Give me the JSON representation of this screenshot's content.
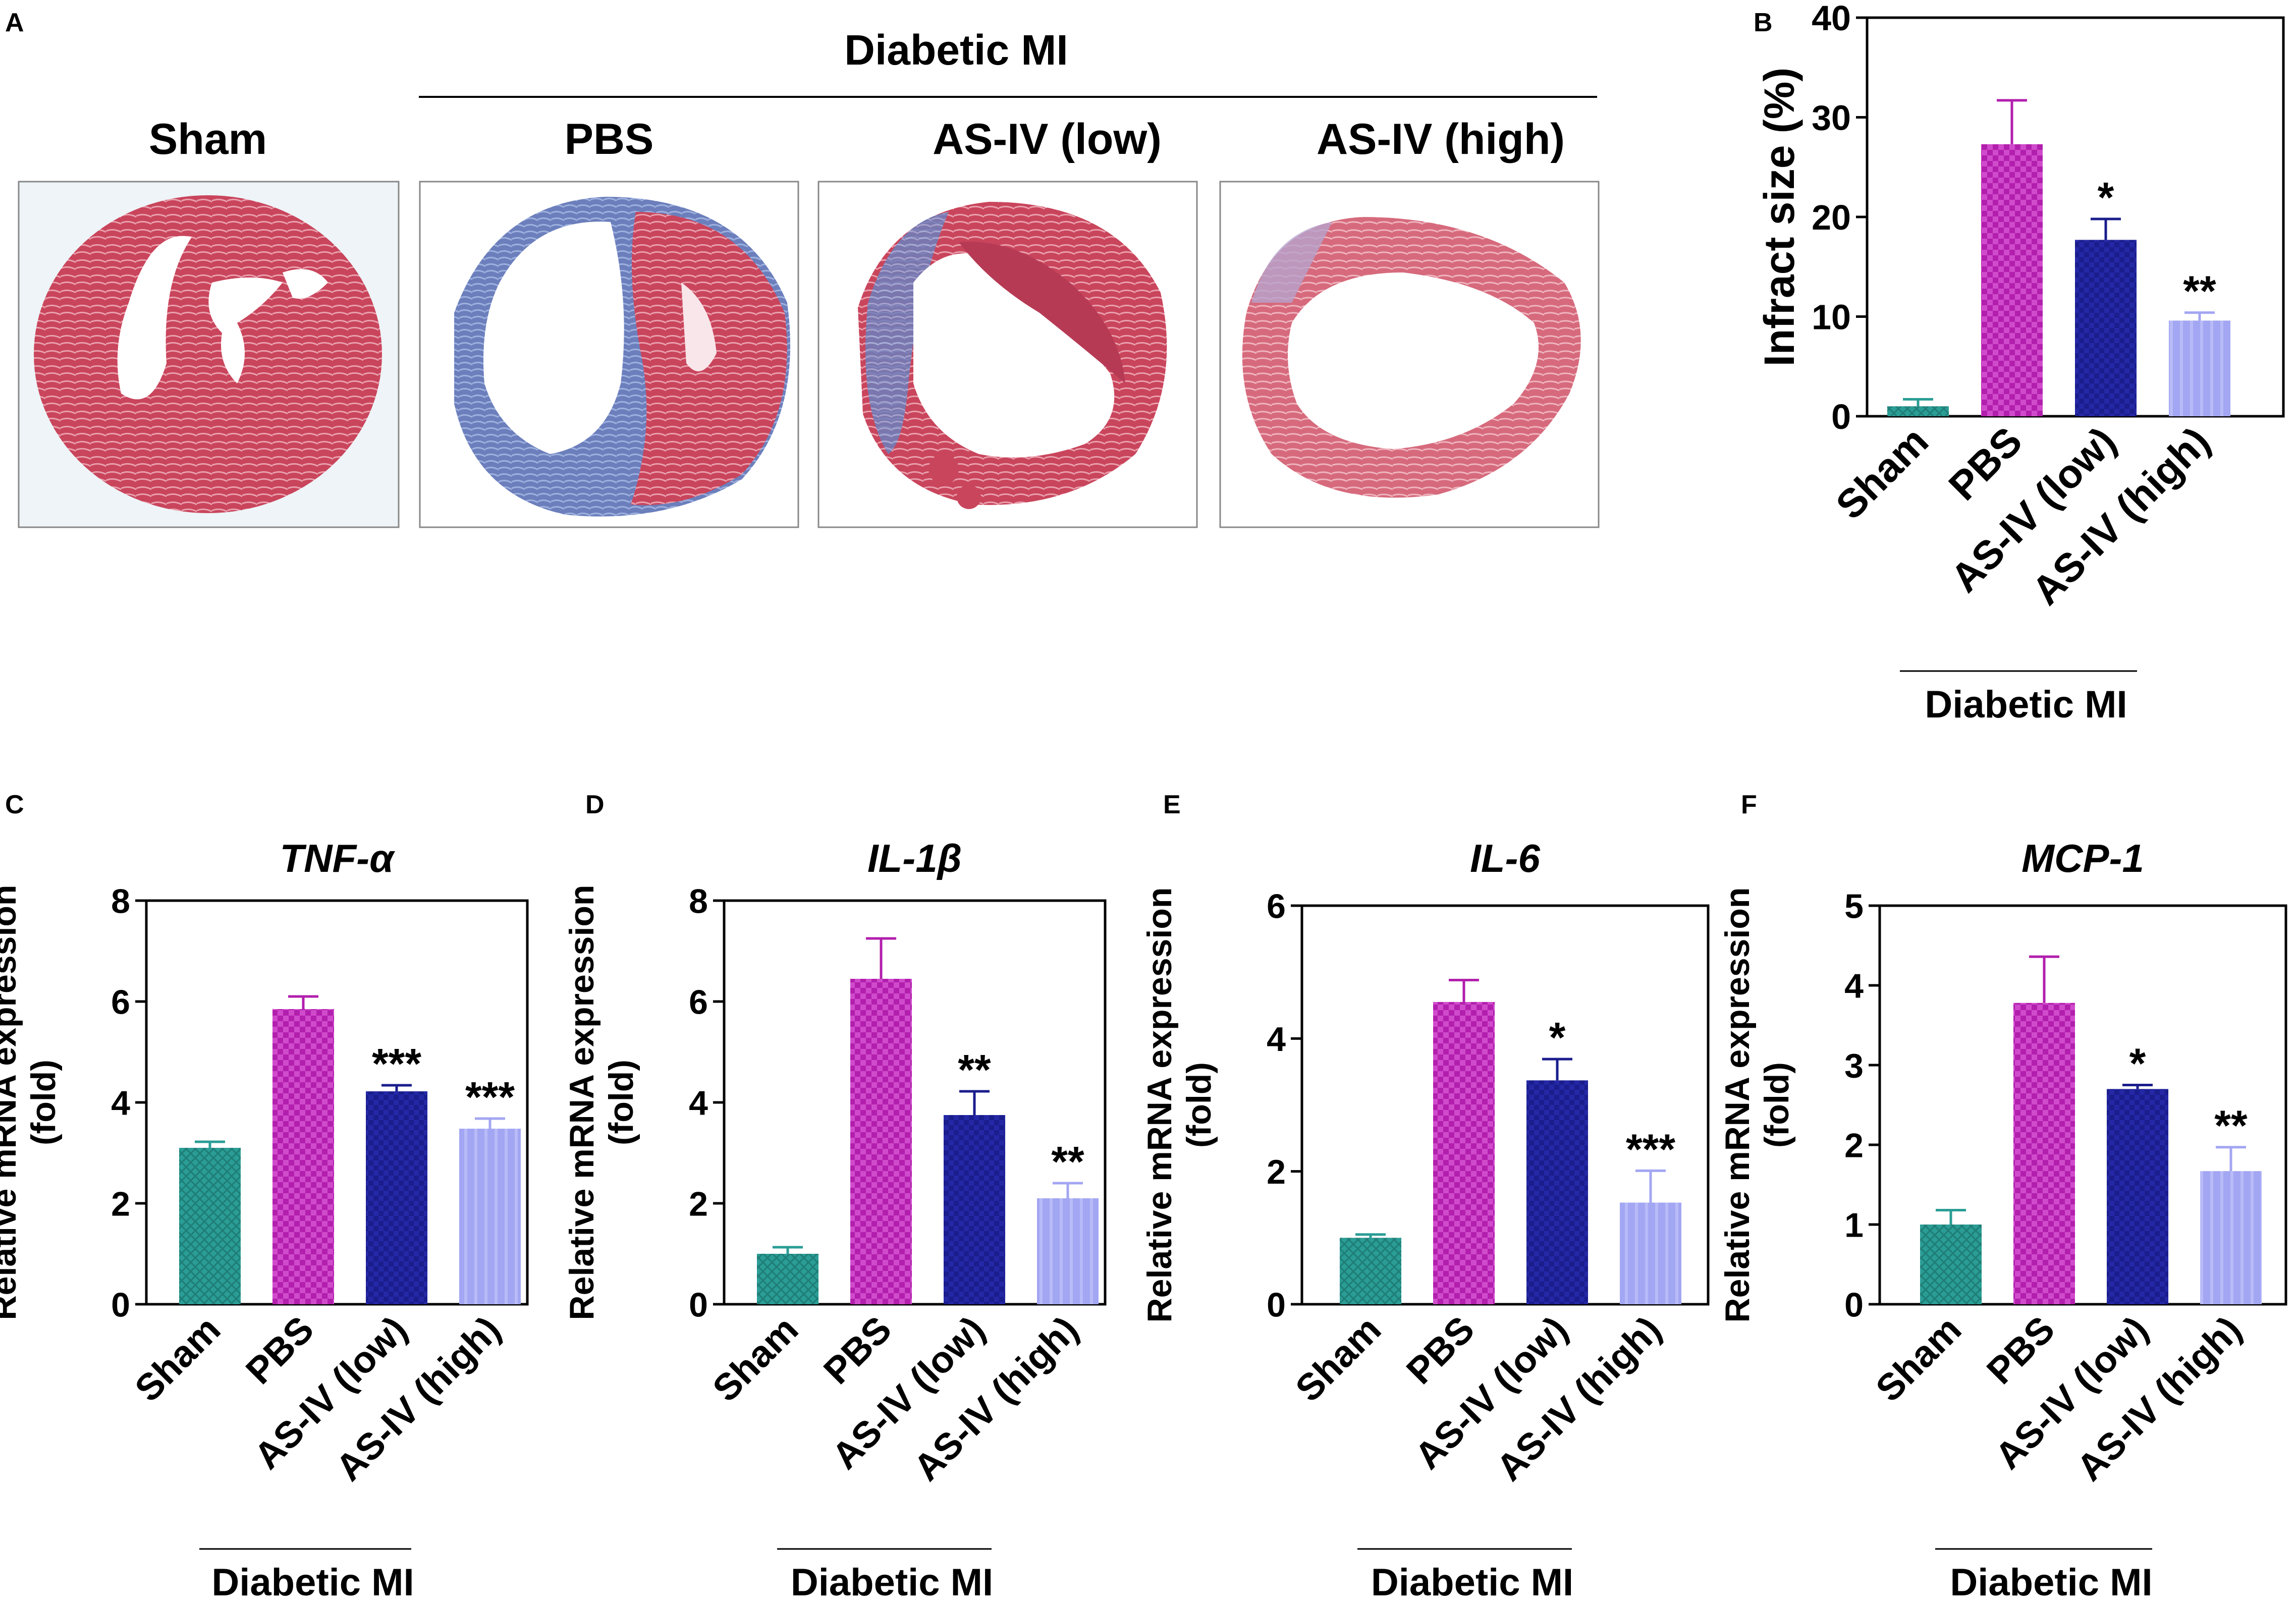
{
  "panel_a": {
    "letter": "A",
    "group_label": "Diabetic MI",
    "sections": [
      {
        "label": "Sham",
        "stain": "sham"
      },
      {
        "label": "PBS",
        "stain": "pbs"
      },
      {
        "label": "AS-IV (low)",
        "stain": "low"
      },
      {
        "label": "AS-IV (high)",
        "stain": "high"
      }
    ]
  },
  "colors": {
    "sham": "#2a9d95",
    "pbs": "#b21fad",
    "low": "#1a1d8c",
    "high": "#a3a6f2",
    "tissue_red": "#c9455c",
    "fibrosis_blue": "#6c7fbc"
  },
  "chart_data": [
    {
      "letter": "B",
      "type": "bar",
      "title": "",
      "title_italic": false,
      "ylabel": "Infract size (%)",
      "ylabel_lines": [
        "Infract size (%)"
      ],
      "categories": [
        "Sham",
        "PBS",
        "AS-IV (low)",
        "AS-IV (high)"
      ],
      "values": [
        1.0,
        27.3,
        17.7,
        9.6
      ],
      "errors": [
        0.7,
        4.4,
        2.1,
        0.8
      ],
      "significance": [
        "",
        "",
        "*",
        "**"
      ],
      "ylim": [
        0,
        40
      ],
      "yticks": [
        "0",
        "10",
        "20",
        "30",
        "40"
      ],
      "group_label": "Diabetic MI"
    },
    {
      "letter": "C",
      "type": "bar",
      "title": "TNF-α",
      "title_italic": true,
      "ylabel": "Relative mRNA expression (fold)",
      "ylabel_lines": [
        "Relative mRNA expression",
        "(fold)"
      ],
      "categories": [
        "Sham",
        "PBS",
        "AS-IV (low)",
        "AS-IV (high)"
      ],
      "values": [
        3.1,
        5.85,
        4.22,
        3.48
      ],
      "errors": [
        0.12,
        0.25,
        0.12,
        0.2
      ],
      "significance": [
        "",
        "",
        "***",
        "***"
      ],
      "ylim": [
        0,
        8
      ],
      "yticks": [
        "0",
        "2",
        "4",
        "6",
        "8"
      ],
      "group_label": "Diabetic MI"
    },
    {
      "letter": "D",
      "type": "bar",
      "title": "IL-1β",
      "title_italic": true,
      "ylabel": "Relative mRNA expression (fold)",
      "ylabel_lines": [
        "Relative mRNA expression",
        "(fold)"
      ],
      "categories": [
        "Sham",
        "PBS",
        "AS-IV (low)",
        "AS-IV (high)"
      ],
      "values": [
        1.0,
        6.45,
        3.75,
        2.1
      ],
      "errors": [
        0.13,
        0.8,
        0.47,
        0.3
      ],
      "significance": [
        "",
        "",
        "**",
        "**"
      ],
      "ylim": [
        0,
        8
      ],
      "yticks": [
        "0",
        "2",
        "4",
        "6",
        "8"
      ],
      "group_label": "Diabetic MI"
    },
    {
      "letter": "E",
      "type": "bar",
      "title": "IL-6",
      "title_italic": true,
      "ylabel": "Relative mRNA expression (fold)",
      "ylabel_lines": [
        "Relative mRNA expression",
        "(fold)"
      ],
      "categories": [
        "Sham",
        "PBS",
        "AS-IV (low)",
        "AS-IV (high)"
      ],
      "values": [
        1.0,
        4.55,
        3.37,
        1.53
      ],
      "errors": [
        0.05,
        0.33,
        0.32,
        0.48
      ],
      "significance": [
        "",
        "",
        "*",
        "***"
      ],
      "ylim": [
        0,
        6
      ],
      "yticks": [
        "0",
        "2",
        "4",
        "6"
      ],
      "group_label": "Diabetic MI"
    },
    {
      "letter": "F",
      "type": "bar",
      "title": "MCP-1",
      "title_italic": true,
      "ylabel": "Relative mRNA expression (fold)",
      "ylabel_lines": [
        "Relative mRNA expression",
        "(fold)"
      ],
      "categories": [
        "Sham",
        "PBS",
        "AS-IV (low)",
        "AS-IV (high)"
      ],
      "values": [
        1.0,
        3.78,
        2.7,
        1.67
      ],
      "errors": [
        0.18,
        0.58,
        0.05,
        0.3
      ],
      "significance": [
        "",
        "",
        "*",
        "**"
      ],
      "ylim": [
        0,
        5
      ],
      "yticks": [
        "0",
        "1",
        "2",
        "3",
        "4",
        "5"
      ],
      "group_label": "Diabetic MI"
    }
  ]
}
